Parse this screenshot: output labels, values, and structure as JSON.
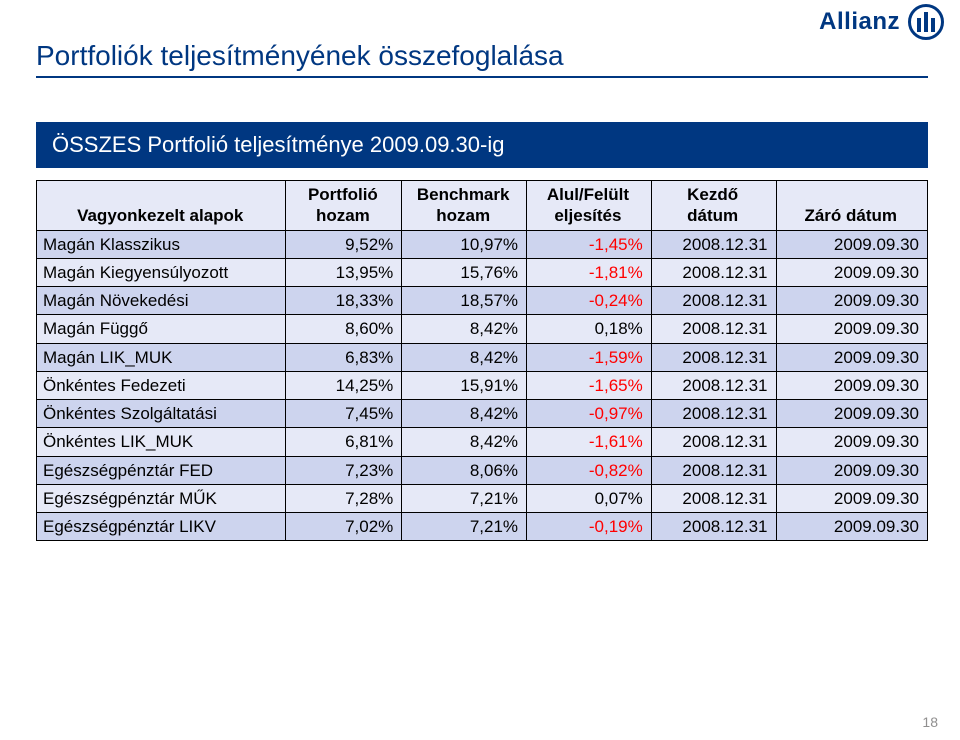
{
  "brand": {
    "name": "Allianz"
  },
  "title": "Portfoliók teljesítményének összefoglalása",
  "banner": "ÖSSZES Portfolió teljesítménye 2009.09.30-ig",
  "page_number": "18",
  "colors": {
    "brand_blue": "#003781",
    "zebra_light": "#e6e9f7",
    "zebra_dark": "#cdd4ee",
    "neg_text": "#ff0000",
    "pagenum": "#908f8f"
  },
  "table": {
    "header": {
      "c0_line1": "",
      "c0_line2": "Vagyonkezelt alapok",
      "c1_line1": "Portfolió",
      "c1_line2": "hozam",
      "c2_line1": "Benchmark",
      "c2_line2": "hozam",
      "c3_line1": "Alul/Felült",
      "c3_line2": "eljesítés",
      "c4_line1": "Kezdő",
      "c4_line2": "dátum",
      "c5_line1": "",
      "c5_line2": "Záró dátum"
    },
    "rows": [
      {
        "label": "Magán Klasszikus",
        "pf": "9,52%",
        "bm": "10,97%",
        "diff": "-1,45%",
        "diff_neg": true,
        "start": "2008.12.31",
        "end": "2009.09.30"
      },
      {
        "label": "Magán Kiegyensúlyozott",
        "pf": "13,95%",
        "bm": "15,76%",
        "diff": "-1,81%",
        "diff_neg": true,
        "start": "2008.12.31",
        "end": "2009.09.30"
      },
      {
        "label": "Magán Növekedési",
        "pf": "18,33%",
        "bm": "18,57%",
        "diff": "-0,24%",
        "diff_neg": true,
        "start": "2008.12.31",
        "end": "2009.09.30"
      },
      {
        "label": "Magán Függő",
        "pf": "8,60%",
        "bm": "8,42%",
        "diff": "0,18%",
        "diff_neg": false,
        "start": "2008.12.31",
        "end": "2009.09.30"
      },
      {
        "label": "Magán LIK_MUK",
        "pf": "6,83%",
        "bm": "8,42%",
        "diff": "-1,59%",
        "diff_neg": true,
        "start": "2008.12.31",
        "end": "2009.09.30"
      },
      {
        "label": "Önkéntes Fedezeti",
        "pf": "14,25%",
        "bm": "15,91%",
        "diff": "-1,65%",
        "diff_neg": true,
        "start": "2008.12.31",
        "end": "2009.09.30"
      },
      {
        "label": "Önkéntes Szolgáltatási",
        "pf": "7,45%",
        "bm": "8,42%",
        "diff": "-0,97%",
        "diff_neg": true,
        "start": "2008.12.31",
        "end": "2009.09.30"
      },
      {
        "label": "Önkéntes LIK_MUK",
        "pf": "6,81%",
        "bm": "8,42%",
        "diff": "-1,61%",
        "diff_neg": true,
        "start": "2008.12.31",
        "end": "2009.09.30"
      },
      {
        "label": "Egészségpénztár FED",
        "pf": "7,23%",
        "bm": "8,06%",
        "diff": "-0,82%",
        "diff_neg": true,
        "start": "2008.12.31",
        "end": "2009.09.30"
      },
      {
        "label": "Egészségpénztár MŰK",
        "pf": "7,28%",
        "bm": "7,21%",
        "diff": "0,07%",
        "diff_neg": false,
        "start": "2008.12.31",
        "end": "2009.09.30"
      },
      {
        "label": "Egészségpénztár LIKV",
        "pf": "7,02%",
        "bm": "7,21%",
        "diff": "-0,19%",
        "diff_neg": true,
        "start": "2008.12.31",
        "end": "2009.09.30"
      }
    ]
  }
}
